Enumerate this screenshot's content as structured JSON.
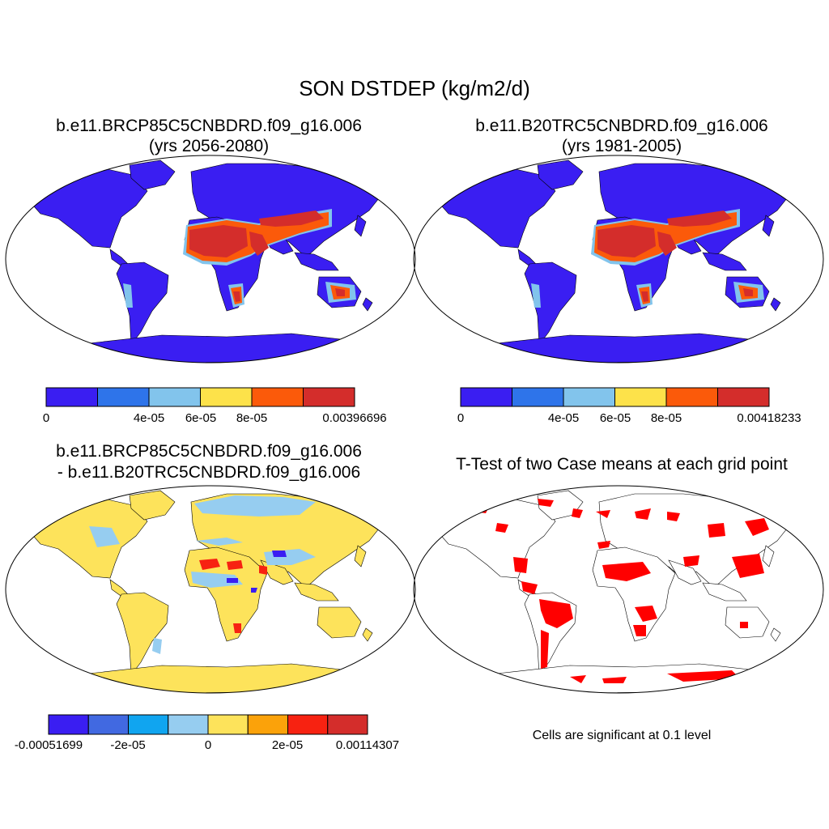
{
  "figure": {
    "title": "SON DSTDEP (kg/m2/d)",
    "note": "Cells are significant at 0.1 level"
  },
  "panels": [
    {
      "id": "case1",
      "title_line1": "b.e11.BRCP85C5CNBDRD.f09_g16.006",
      "title_line2": "(yrs 2056-2080)",
      "colorbar": {
        "colors": [
          "#3a1ef2",
          "#2e74ea",
          "#82c4ec",
          "#fde24a",
          "#fb5a0a",
          "#d42d2b"
        ],
        "labels": [
          "0",
          "4e-05",
          "6e-05",
          "8e-05",
          "0.00396696"
        ]
      }
    },
    {
      "id": "case2",
      "title_line1": "b.e11.B20TRC5CNBDRD.f09_g16.006",
      "title_line2": "(yrs 1981-2005)",
      "colorbar": {
        "colors": [
          "#3a1ef2",
          "#2e74ea",
          "#82c4ec",
          "#fde24a",
          "#fb5a0a",
          "#d42d2b"
        ],
        "labels": [
          "0",
          "4e-05",
          "6e-05",
          "8e-05",
          "0.00418233"
        ]
      }
    },
    {
      "id": "diff",
      "title_line1": "b.e11.BRCP85C5CNBDRD.f09_g16.006",
      "title_line2": "- b.e11.B20TRC5CNBDRD.f09_g16.006",
      "colorbar": {
        "colors": [
          "#3a1ef2",
          "#4169e1",
          "#10a5f0",
          "#96cdf0",
          "#fde35b",
          "#fba20a",
          "#f72211",
          "#d42d2b"
        ],
        "labels": [
          "-0.00051699",
          "-2e-05",
          "0",
          "2e-05",
          "0.00114307"
        ]
      }
    },
    {
      "id": "ttest",
      "title_line1": "T-Test of two Case means at each grid point"
    }
  ],
  "colors": {
    "land_base": "#3a1ef2",
    "diff_base": "#fde35b",
    "diff_secondary": "#96cdf0",
    "significance": "#ff0000"
  }
}
